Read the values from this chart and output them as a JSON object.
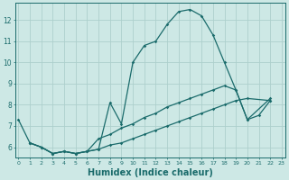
{
  "bg_color": "#cde8e5",
  "line_color": "#1a6b6b",
  "grid_color": "#add0cc",
  "xlabel": "Humidex (Indice chaleur)",
  "xlabel_fontsize": 7,
  "ytick_labels": [
    "6",
    "7",
    "8",
    "9",
    "10",
    "11",
    "12"
  ],
  "xtick_labels": [
    "0",
    "1",
    "2",
    "3",
    "4",
    "5",
    "6",
    "7",
    "8",
    "9",
    "10",
    "11",
    "12",
    "13",
    "14",
    "15",
    "16",
    "17",
    "18",
    "19",
    "20",
    "21",
    "22",
    "23"
  ],
  "ylim": [
    5.5,
    12.8
  ],
  "xlim": [
    -0.3,
    23.3
  ],
  "series": [
    [
      7.3,
      6.2,
      6.0,
      5.7,
      5.8,
      5.7,
      5.8,
      5.9,
      8.1,
      7.1,
      10.0,
      10.8,
      11.0,
      11.8,
      12.4,
      12.5,
      12.2,
      11.3,
      10.0,
      8.7,
      7.3,
      7.5,
      8.2,
      null
    ],
    [
      null,
      6.2,
      6.0,
      5.7,
      5.8,
      5.7,
      5.8,
      6.4,
      6.6,
      6.9,
      7.1,
      7.4,
      7.6,
      7.9,
      8.1,
      8.3,
      8.5,
      8.7,
      8.9,
      8.7,
      7.3,
      null,
      8.3,
      null
    ],
    [
      null,
      6.2,
      6.0,
      5.7,
      5.8,
      5.7,
      5.8,
      5.9,
      6.1,
      6.2,
      6.4,
      6.6,
      6.8,
      7.0,
      7.2,
      7.4,
      7.6,
      7.8,
      8.0,
      8.2,
      8.3,
      null,
      8.2,
      null
    ]
  ]
}
